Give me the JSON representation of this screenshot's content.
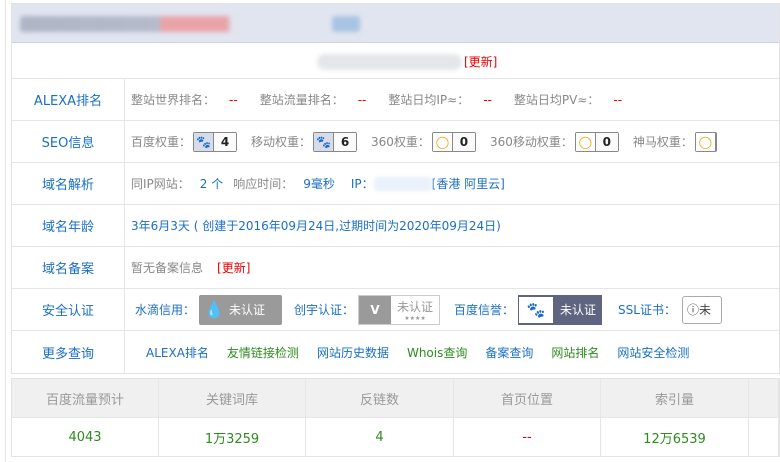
{
  "update_label": "[更新]",
  "rows": {
    "alexa": {
      "label": "ALEXA排名",
      "items": [
        {
          "k": "整站世界排名：",
          "v": "--"
        },
        {
          "k": "整站流量排名：",
          "v": "--"
        },
        {
          "k": "整站日均IP≈：",
          "v": "--"
        },
        {
          "k": "整站日均PV≈：",
          "v": "--"
        }
      ]
    },
    "seo": {
      "label": "SEO信息",
      "items": [
        {
          "k": "百度权重：",
          "v": "4",
          "icon": "baidu-paw-icon"
        },
        {
          "k": "移动权重：",
          "v": "6",
          "icon": "baidu-paw-icon"
        },
        {
          "k": "360权重：",
          "v": "0",
          "icon": "360-icon"
        },
        {
          "k": "360移动权重：",
          "v": "0",
          "icon": "360-icon"
        },
        {
          "k": "神马权重：",
          "v": ""
        }
      ]
    },
    "dns": {
      "label": "域名解析",
      "same_ip_k": "同IP网站：",
      "same_ip_v": "2 个",
      "resp_k": "响应时间：",
      "resp_v": "9毫秒",
      "ip_k": "IP：",
      "ip_loc": "[香港 阿里云]"
    },
    "age": {
      "label": "域名年龄",
      "value": "3年6月3天 ( 创建于2016年09月24日,过期时间为2020年09月24日)"
    },
    "icp": {
      "label": "域名备案",
      "value": "暂无备案信息",
      "update": "[更新]"
    },
    "security": {
      "label": "安全认证",
      "items": [
        {
          "k": "水滴信用：",
          "badge": "未认证"
        },
        {
          "k": "创宇认证：",
          "badge": "未认证",
          "stars": "★★★★"
        },
        {
          "k": "百度信誉：",
          "badge": "未认证"
        },
        {
          "k": "SSL证书：",
          "badge": "未"
        }
      ]
    },
    "more": {
      "label": "更多查询",
      "links": [
        {
          "t": "ALEXA排名",
          "c": "blue"
        },
        {
          "t": "友情链接检测",
          "c": "green"
        },
        {
          "t": "网站历史数据",
          "c": "blue"
        },
        {
          "t": "Whois查询",
          "c": "green"
        },
        {
          "t": "备案查询",
          "c": "blue"
        },
        {
          "t": "网站排名",
          "c": "green"
        },
        {
          "t": "网站安全检测",
          "c": "blue"
        }
      ]
    }
  },
  "stats": {
    "headers": [
      "百度流量预计",
      "关键词库",
      "反链数",
      "首页位置",
      "索引量",
      ""
    ],
    "values": [
      "4043",
      "1万3259",
      "4",
      "--",
      "12万6539",
      ""
    ]
  },
  "colors": {
    "link_blue": "#1a6fc4",
    "link_green": "#2e8b1e",
    "alert_red": "#e00000",
    "header_bg": "#e1e5ef"
  }
}
